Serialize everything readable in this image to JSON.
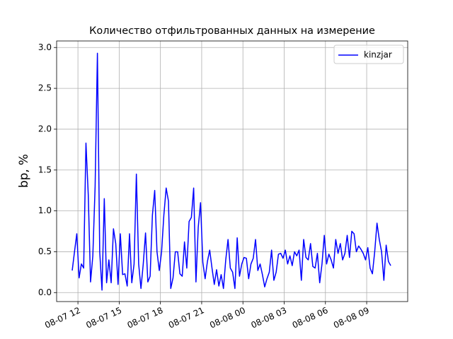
{
  "chart_data": {
    "type": "line",
    "title": "Количество отфильтрованных данных на измерение",
    "y_label": "bp, %",
    "x": [
      "08-07 11:35",
      "08-07 11:45",
      "08-07 11:55",
      "08-07 12:05",
      "08-07 12:15",
      "08-07 12:25",
      "08-07 12:35",
      "08-07 12:45",
      "08-07 12:55",
      "08-07 13:05",
      "08-07 13:15",
      "08-07 13:25",
      "08-07 13:35",
      "08-07 13:45",
      "08-07 13:55",
      "08-07 14:05",
      "08-07 14:15",
      "08-07 14:25",
      "08-07 14:35",
      "08-07 14:45",
      "08-07 14:55",
      "08-07 15:05",
      "08-07 15:15",
      "08-07 15:25",
      "08-07 15:35",
      "08-07 15:45",
      "08-07 15:55",
      "08-07 16:05",
      "08-07 16:15",
      "08-07 16:25",
      "08-07 16:35",
      "08-07 16:45",
      "08-07 16:55",
      "08-07 17:05",
      "08-07 17:15",
      "08-07 17:25",
      "08-07 17:35",
      "08-07 17:45",
      "08-07 17:55",
      "08-07 18:05",
      "08-07 18:15",
      "08-07 18:25",
      "08-07 18:35",
      "08-07 18:45",
      "08-07 18:55",
      "08-07 19:05",
      "08-07 19:15",
      "08-07 19:25",
      "08-07 19:35",
      "08-07 19:45",
      "08-07 19:55",
      "08-07 20:05",
      "08-07 20:15",
      "08-07 20:25",
      "08-07 20:35",
      "08-07 20:45",
      "08-07 20:55",
      "08-07 21:05",
      "08-07 21:15",
      "08-07 21:25",
      "08-07 21:35",
      "08-07 21:45",
      "08-07 21:55",
      "08-07 22:05",
      "08-07 22:15",
      "08-07 22:25",
      "08-07 22:35",
      "08-07 22:45",
      "08-07 22:55",
      "08-07 23:05",
      "08-07 23:15",
      "08-07 23:25",
      "08-07 23:35",
      "08-07 23:45",
      "08-07 23:55",
      "08-08 00:05",
      "08-08 00:15",
      "08-08 00:25",
      "08-08 00:35",
      "08-08 00:45",
      "08-08 00:55",
      "08-08 01:05",
      "08-08 01:15",
      "08-08 01:25",
      "08-08 01:35",
      "08-08 01:45",
      "08-08 01:55",
      "08-08 02:05",
      "08-08 02:15",
      "08-08 02:25",
      "08-08 02:35",
      "08-08 02:45",
      "08-08 02:55",
      "08-08 03:05",
      "08-08 03:15",
      "08-08 03:25",
      "08-08 03:35",
      "08-08 03:45",
      "08-08 03:55",
      "08-08 04:05",
      "08-08 04:15",
      "08-08 04:25",
      "08-08 04:35",
      "08-08 04:45",
      "08-08 04:55",
      "08-08 05:05",
      "08-08 05:15",
      "08-08 05:25",
      "08-08 05:35",
      "08-08 05:45",
      "08-08 05:55",
      "08-08 06:05",
      "08-08 06:15",
      "08-08 06:25",
      "08-08 06:35",
      "08-08 06:45",
      "08-08 06:55",
      "08-08 07:05",
      "08-08 07:15",
      "08-08 07:25",
      "08-08 07:35",
      "08-08 07:45",
      "08-08 07:55",
      "08-08 08:05",
      "08-08 08:15",
      "08-08 08:25",
      "08-08 08:35",
      "08-08 08:45",
      "08-08 08:55",
      "08-08 09:05",
      "08-08 09:15",
      "08-08 09:25",
      "08-08 09:35",
      "08-08 09:45",
      "08-08 09:55",
      "08-08 10:05",
      "08-08 10:15",
      "08-08 10:25",
      "08-08 10:35",
      "08-08 10:45"
    ],
    "series": [
      {
        "name": "kinzjar",
        "color": "#0000ff",
        "values": [
          0.27,
          0.5,
          0.72,
          0.18,
          0.35,
          0.3,
          1.83,
          1.2,
          0.13,
          0.45,
          1.3,
          2.93,
          0.5,
          0.03,
          1.15,
          0.12,
          0.4,
          0.12,
          0.78,
          0.6,
          0.1,
          0.72,
          0.22,
          0.23,
          0.08,
          0.72,
          0.12,
          0.35,
          1.45,
          0.35,
          0.05,
          0.35,
          0.73,
          0.13,
          0.2,
          0.95,
          1.25,
          0.5,
          0.27,
          0.5,
          0.95,
          1.28,
          1.12,
          0.05,
          0.18,
          0.5,
          0.5,
          0.23,
          0.2,
          0.62,
          0.3,
          0.87,
          0.92,
          1.28,
          0.13,
          0.8,
          1.1,
          0.37,
          0.17,
          0.38,
          0.52,
          0.3,
          0.1,
          0.28,
          0.08,
          0.22,
          0.05,
          0.4,
          0.65,
          0.3,
          0.25,
          0.05,
          0.67,
          0.2,
          0.35,
          0.43,
          0.42,
          0.17,
          0.35,
          0.42,
          0.65,
          0.27,
          0.35,
          0.22,
          0.07,
          0.17,
          0.25,
          0.52,
          0.15,
          0.25,
          0.47,
          0.48,
          0.42,
          0.52,
          0.35,
          0.45,
          0.33,
          0.5,
          0.45,
          0.52,
          0.15,
          0.65,
          0.43,
          0.4,
          0.6,
          0.32,
          0.3,
          0.48,
          0.12,
          0.35,
          0.7,
          0.35,
          0.47,
          0.4,
          0.3,
          0.65,
          0.48,
          0.6,
          0.4,
          0.48,
          0.7,
          0.43,
          0.75,
          0.72,
          0.5,
          0.57,
          0.53,
          0.48,
          0.4,
          0.55,
          0.3,
          0.23,
          0.5,
          0.85,
          0.65,
          0.5,
          0.15,
          0.58,
          0.38,
          0.33
        ]
      }
    ],
    "xlim": [
      "08-07 10:27",
      "08-08 11:59"
    ],
    "xticks": [
      "08-07 12",
      "08-07 15",
      "08-07 18",
      "08-07 21",
      "08-08 00",
      "08-08 03",
      "08-08 06",
      "08-08 09"
    ],
    "ylim": [
      -0.11,
      3.08
    ],
    "yticks": [
      {
        "value": 0,
        "label": "0.0"
      },
      0.5,
      {
        "value": 1,
        "label": "1.0"
      },
      1.5,
      {
        "value": 2,
        "label": "2.0"
      },
      2.5,
      {
        "value": 3,
        "label": "3.0"
      }
    ],
    "grid": true,
    "legend": "upper right"
  }
}
